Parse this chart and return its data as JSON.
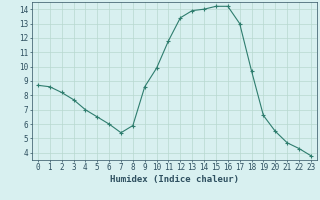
{
  "x": [
    0,
    1,
    2,
    3,
    4,
    5,
    6,
    7,
    8,
    9,
    10,
    11,
    12,
    13,
    14,
    15,
    16,
    17,
    18,
    19,
    20,
    21,
    22,
    23
  ],
  "y": [
    8.7,
    8.6,
    8.2,
    7.7,
    7.0,
    6.5,
    6.0,
    5.4,
    5.9,
    8.6,
    9.9,
    11.8,
    13.4,
    13.9,
    14.0,
    14.2,
    14.2,
    13.0,
    9.7,
    6.6,
    5.5,
    4.7,
    4.3,
    3.8
  ],
  "line_color": "#2e7d6e",
  "marker": "+",
  "marker_size": 3,
  "bg_color": "#d8f0f0",
  "grid_color": "#b8d8d0",
  "xlabel": "Humidex (Indice chaleur)",
  "xlim": [
    -0.5,
    23.5
  ],
  "ylim": [
    3.5,
    14.5
  ],
  "yticks": [
    4,
    5,
    6,
    7,
    8,
    9,
    10,
    11,
    12,
    13,
    14
  ],
  "xticks": [
    0,
    1,
    2,
    3,
    4,
    5,
    6,
    7,
    8,
    9,
    10,
    11,
    12,
    13,
    14,
    15,
    16,
    17,
    18,
    19,
    20,
    21,
    22,
    23
  ],
  "font_color": "#2e5060",
  "tick_fontsize": 5.5,
  "label_fontsize": 6.5
}
